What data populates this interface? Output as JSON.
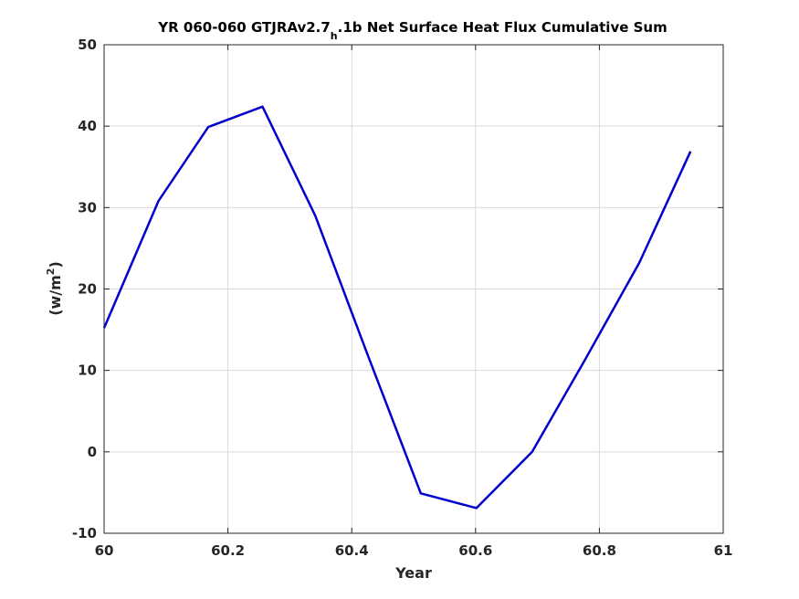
{
  "chart_data": {
    "type": "line",
    "title": {
      "prefix": "YR 060-060 GTJRAv2.7",
      "subscript": "h",
      "suffix": ".1b Net Surface Heat Flux  Cumulative Sum"
    },
    "xlabel": "Year",
    "ylabel": {
      "base": "(w/m",
      "superscript": "2",
      "close": ")"
    },
    "xlim": [
      60,
      61
    ],
    "ylim": [
      -10,
      50
    ],
    "xticks": [
      60,
      60.2,
      60.4,
      60.6,
      60.8,
      61
    ],
    "xtick_labels": [
      "60",
      "60.2",
      "60.4",
      "60.6",
      "60.8",
      "61"
    ],
    "yticks": [
      -10,
      0,
      10,
      20,
      30,
      40,
      50
    ],
    "ytick_labels": [
      "-10",
      "0",
      "10",
      "20",
      "30",
      "40",
      "50"
    ],
    "grid": true,
    "series": [
      {
        "color": "#0000cc",
        "x": [
          60.0,
          60.0877,
          60.1683,
          60.2559,
          60.3411,
          60.4263,
          60.5115,
          60.6015,
          60.6915,
          60.7767,
          60.8643,
          60.9472
        ],
        "y": [
          15.2,
          30.8,
          39.9,
          42.4,
          29.0,
          11.8,
          -5.1,
          -6.9,
          0.0,
          11.3,
          23.2,
          36.9
        ]
      }
    ]
  }
}
